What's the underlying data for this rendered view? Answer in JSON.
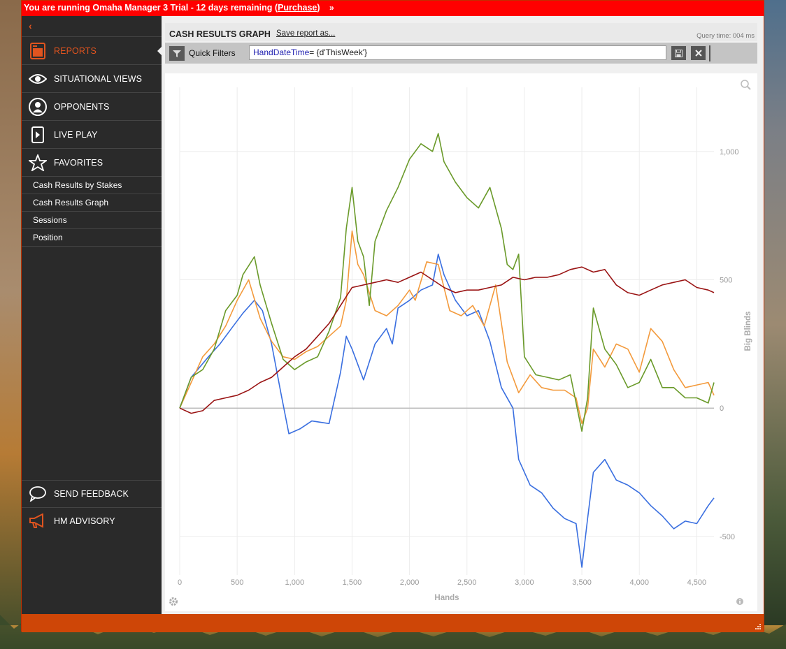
{
  "trial_bar": {
    "prefix": "You are running Omaha Manager 3 Trial - 12 days remaining (",
    "purchase": "Purchase",
    "suffix": ")",
    "chevron": "»"
  },
  "sidebar": {
    "back": "‹",
    "items": [
      {
        "label": "REPORTS",
        "icon": "reports-icon",
        "active": true
      },
      {
        "label": "SITUATIONAL VIEWS",
        "icon": "eye-icon"
      },
      {
        "label": "OPPONENTS",
        "icon": "user-icon"
      },
      {
        "label": "LIVE PLAY",
        "icon": "play-icon"
      },
      {
        "label": "FAVORITES",
        "icon": "star-icon"
      }
    ],
    "favorites": [
      "Cash Results by Stakes",
      "Cash Results Graph",
      "Sessions",
      "Position"
    ],
    "bottom": [
      {
        "label": "SEND FEEDBACK",
        "icon": "speech-bubble-icon"
      },
      {
        "label": "HM ADVISORY",
        "icon": "megaphone-icon"
      }
    ]
  },
  "header": {
    "title": "CASH RESULTS GRAPH",
    "save_as": "Save report as...",
    "query_time": "Query time: 004 ms"
  },
  "filters": {
    "label": "Quick Filters",
    "query_keyword": "HandDateTime",
    "query_rest": "= {d'ThisWeek'}"
  },
  "colors": {
    "trial": "#ff0000",
    "accent": "#e0541f",
    "footer": "#ce4607",
    "sidebar": "#2a2a2a"
  },
  "chart_data": {
    "type": "line",
    "title": "",
    "xlabel": "Hands",
    "ylabel": "Big Blinds",
    "xlim": [
      0,
      4650
    ],
    "ylim": [
      -650,
      1250
    ],
    "x_ticks": [
      0,
      500,
      1000,
      1500,
      2000,
      2500,
      3000,
      3500,
      4000,
      4500
    ],
    "x_tick_labels": [
      "0",
      "500",
      "1,000",
      "1,500",
      "2,000",
      "2,500",
      "3,000",
      "3,500",
      "4,000",
      "4,500"
    ],
    "y_ticks": [
      -500,
      0,
      500,
      1000
    ],
    "y_tick_labels": [
      "-500",
      "0",
      "500",
      "1,000"
    ],
    "grid": true,
    "series": [
      {
        "color": "#3a6fe0",
        "x": [
          0,
          100,
          250,
          350,
          450,
          550,
          650,
          720,
          800,
          880,
          950,
          1050,
          1150,
          1300,
          1400,
          1450,
          1500,
          1600,
          1700,
          1800,
          1850,
          1900,
          2000,
          2100,
          2200,
          2250,
          2300,
          2400,
          2500,
          2600,
          2700,
          2800,
          2900,
          2950,
          3050,
          3150,
          3250,
          3350,
          3450,
          3500,
          3550,
          3600,
          3700,
          3800,
          3900,
          4000,
          4100,
          4200,
          4300,
          4400,
          4500,
          4600,
          4650
        ],
        "y": [
          0,
          120,
          200,
          250,
          310,
          370,
          420,
          380,
          250,
          60,
          -100,
          -80,
          -50,
          -60,
          140,
          280,
          230,
          110,
          250,
          310,
          250,
          390,
          420,
          460,
          480,
          600,
          520,
          420,
          360,
          380,
          260,
          80,
          0,
          -200,
          -300,
          -330,
          -390,
          -430,
          -450,
          -620,
          -430,
          -250,
          -200,
          -280,
          -300,
          -330,
          -380,
          -420,
          -470,
          -440,
          -450,
          -380,
          -350
        ]
      },
      {
        "color": "#f39a3c",
        "x": [
          0,
          100,
          200,
          300,
          400,
          500,
          600,
          700,
          800,
          900,
          1000,
          1100,
          1200,
          1300,
          1400,
          1450,
          1500,
          1550,
          1600,
          1700,
          1800,
          1900,
          2000,
          2050,
          2150,
          2250,
          2350,
          2450,
          2550,
          2650,
          2750,
          2850,
          2950,
          3050,
          3150,
          3250,
          3350,
          3450,
          3500,
          3550,
          3600,
          3700,
          3800,
          3900,
          4000,
          4100,
          4200,
          4300,
          4400,
          4500,
          4600,
          4650
        ],
        "y": [
          0,
          100,
          200,
          250,
          320,
          420,
          500,
          350,
          260,
          200,
          190,
          220,
          240,
          280,
          320,
          420,
          690,
          560,
          520,
          380,
          360,
          400,
          460,
          420,
          570,
          560,
          380,
          360,
          400,
          320,
          480,
          180,
          60,
          130,
          80,
          70,
          70,
          40,
          -60,
          0,
          230,
          160,
          250,
          230,
          140,
          310,
          260,
          150,
          80,
          90,
          100,
          50
        ]
      },
      {
        "color": "#6a9a2a",
        "x": [
          0,
          100,
          200,
          300,
          400,
          500,
          550,
          650,
          700,
          800,
          900,
          1000,
          1100,
          1200,
          1300,
          1400,
          1450,
          1500,
          1550,
          1600,
          1650,
          1700,
          1800,
          1900,
          2000,
          2100,
          2200,
          2250,
          2300,
          2400,
          2500,
          2600,
          2700,
          2800,
          2850,
          2900,
          2950,
          3000,
          3100,
          3200,
          3300,
          3400,
          3500,
          3550,
          3600,
          3700,
          3800,
          3900,
          4000,
          4100,
          4200,
          4300,
          4400,
          4500,
          4600,
          4650
        ],
        "y": [
          0,
          120,
          150,
          230,
          380,
          440,
          520,
          590,
          480,
          330,
          190,
          150,
          180,
          200,
          300,
          430,
          700,
          860,
          650,
          590,
          400,
          650,
          770,
          860,
          970,
          1030,
          1000,
          1070,
          960,
          880,
          820,
          780,
          860,
          700,
          560,
          540,
          600,
          200,
          130,
          120,
          110,
          130,
          -90,
          40,
          390,
          230,
          170,
          80,
          100,
          190,
          80,
          80,
          40,
          40,
          20,
          100
        ]
      },
      {
        "color": "#9a1414",
        "x": [
          0,
          100,
          200,
          300,
          400,
          500,
          600,
          700,
          800,
          900,
          1000,
          1100,
          1200,
          1300,
          1400,
          1500,
          1600,
          1700,
          1800,
          1900,
          2000,
          2100,
          2200,
          2300,
          2400,
          2500,
          2600,
          2700,
          2800,
          2900,
          3000,
          3100,
          3200,
          3300,
          3400,
          3500,
          3600,
          3700,
          3800,
          3900,
          4000,
          4100,
          4200,
          4300,
          4400,
          4500,
          4600,
          4650
        ],
        "y": [
          0,
          -20,
          -10,
          30,
          40,
          50,
          70,
          100,
          120,
          160,
          200,
          230,
          280,
          330,
          400,
          470,
          480,
          490,
          500,
          490,
          510,
          530,
          500,
          470,
          450,
          460,
          460,
          470,
          480,
          510,
          500,
          510,
          510,
          520,
          540,
          550,
          530,
          540,
          480,
          450,
          440,
          460,
          480,
          490,
          500,
          470,
          460,
          450
        ]
      }
    ]
  }
}
